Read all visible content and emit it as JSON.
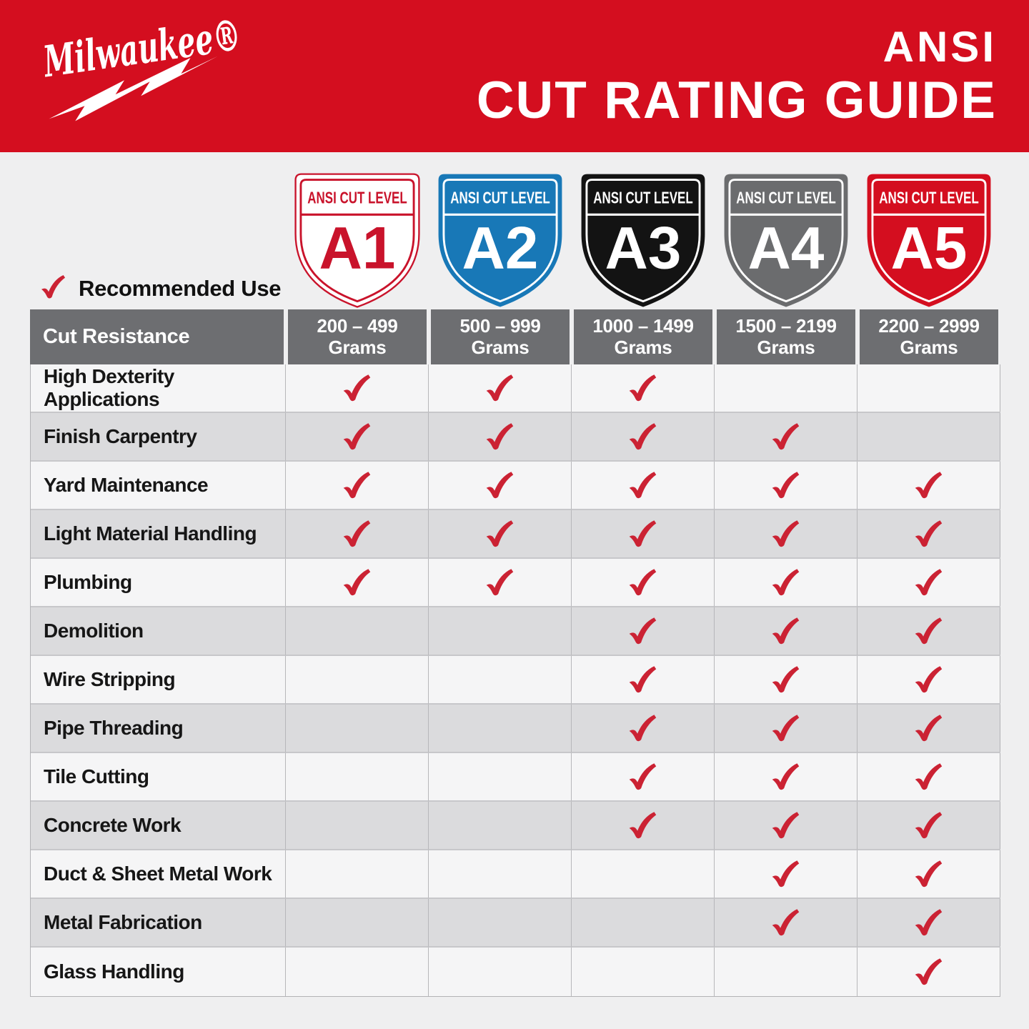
{
  "header": {
    "brand": "Milwaukee®",
    "title_line1": "ANSI",
    "title_line2": "CUT RATING GUIDE"
  },
  "legend": {
    "label": "Recommended Use"
  },
  "colors": {
    "brand_red": "#D40E1F",
    "check_red": "#CB2233",
    "header_gray": "#6D6E71",
    "row_light": "#F5F5F6",
    "row_dark": "#DBDBDD"
  },
  "shields": [
    {
      "level": "A1",
      "banner": "ANSI CUT LEVEL",
      "fill": "#FFFFFF",
      "accent": "#C9132B",
      "outlined": true
    },
    {
      "level": "A2",
      "banner": "ANSI CUT LEVEL",
      "fill": "#1878B7",
      "accent": "#FFFFFF"
    },
    {
      "level": "A3",
      "banner": "ANSI CUT LEVEL",
      "fill": "#131313",
      "accent": "#FFFFFF"
    },
    {
      "level": "A4",
      "banner": "ANSI CUT LEVEL",
      "fill": "#6B6C6E",
      "accent": "#FFFFFF"
    },
    {
      "level": "A5",
      "banner": "ANSI CUT LEVEL",
      "fill": "#D40E1F",
      "accent": "#FFFFFF"
    }
  ],
  "table": {
    "row_header": "Cut Resistance"
  },
  "chart_data": {
    "type": "table",
    "title": "ANSI CUT RATING GUIDE",
    "col_levels": [
      "A1",
      "A2",
      "A3",
      "A4",
      "A5"
    ],
    "col_ranges": [
      "200 – 499",
      "500 – 999",
      "1000 – 1499",
      "1500 – 2199",
      "2200 – 2999"
    ],
    "unit": "Grams",
    "row_categories": [
      "High Dexterity Applications",
      "Finish Carpentry",
      "Yard Maintenance",
      "Light Material Handling",
      "Plumbing",
      "Demolition",
      "Wire Stripping",
      "Pipe Threading",
      "Tile Cutting",
      "Concrete Work",
      "Duct & Sheet Metal Work",
      "Metal Fabrication",
      "Glass Handling"
    ],
    "recommended": [
      [
        1,
        1,
        1,
        0,
        0
      ],
      [
        1,
        1,
        1,
        1,
        0
      ],
      [
        1,
        1,
        1,
        1,
        1
      ],
      [
        1,
        1,
        1,
        1,
        1
      ],
      [
        1,
        1,
        1,
        1,
        1
      ],
      [
        0,
        0,
        1,
        1,
        1
      ],
      [
        0,
        0,
        1,
        1,
        1
      ],
      [
        0,
        0,
        1,
        1,
        1
      ],
      [
        0,
        0,
        1,
        1,
        1
      ],
      [
        0,
        0,
        1,
        1,
        1
      ],
      [
        0,
        0,
        0,
        1,
        1
      ],
      [
        0,
        0,
        0,
        1,
        1
      ],
      [
        0,
        0,
        0,
        0,
        1
      ]
    ]
  }
}
